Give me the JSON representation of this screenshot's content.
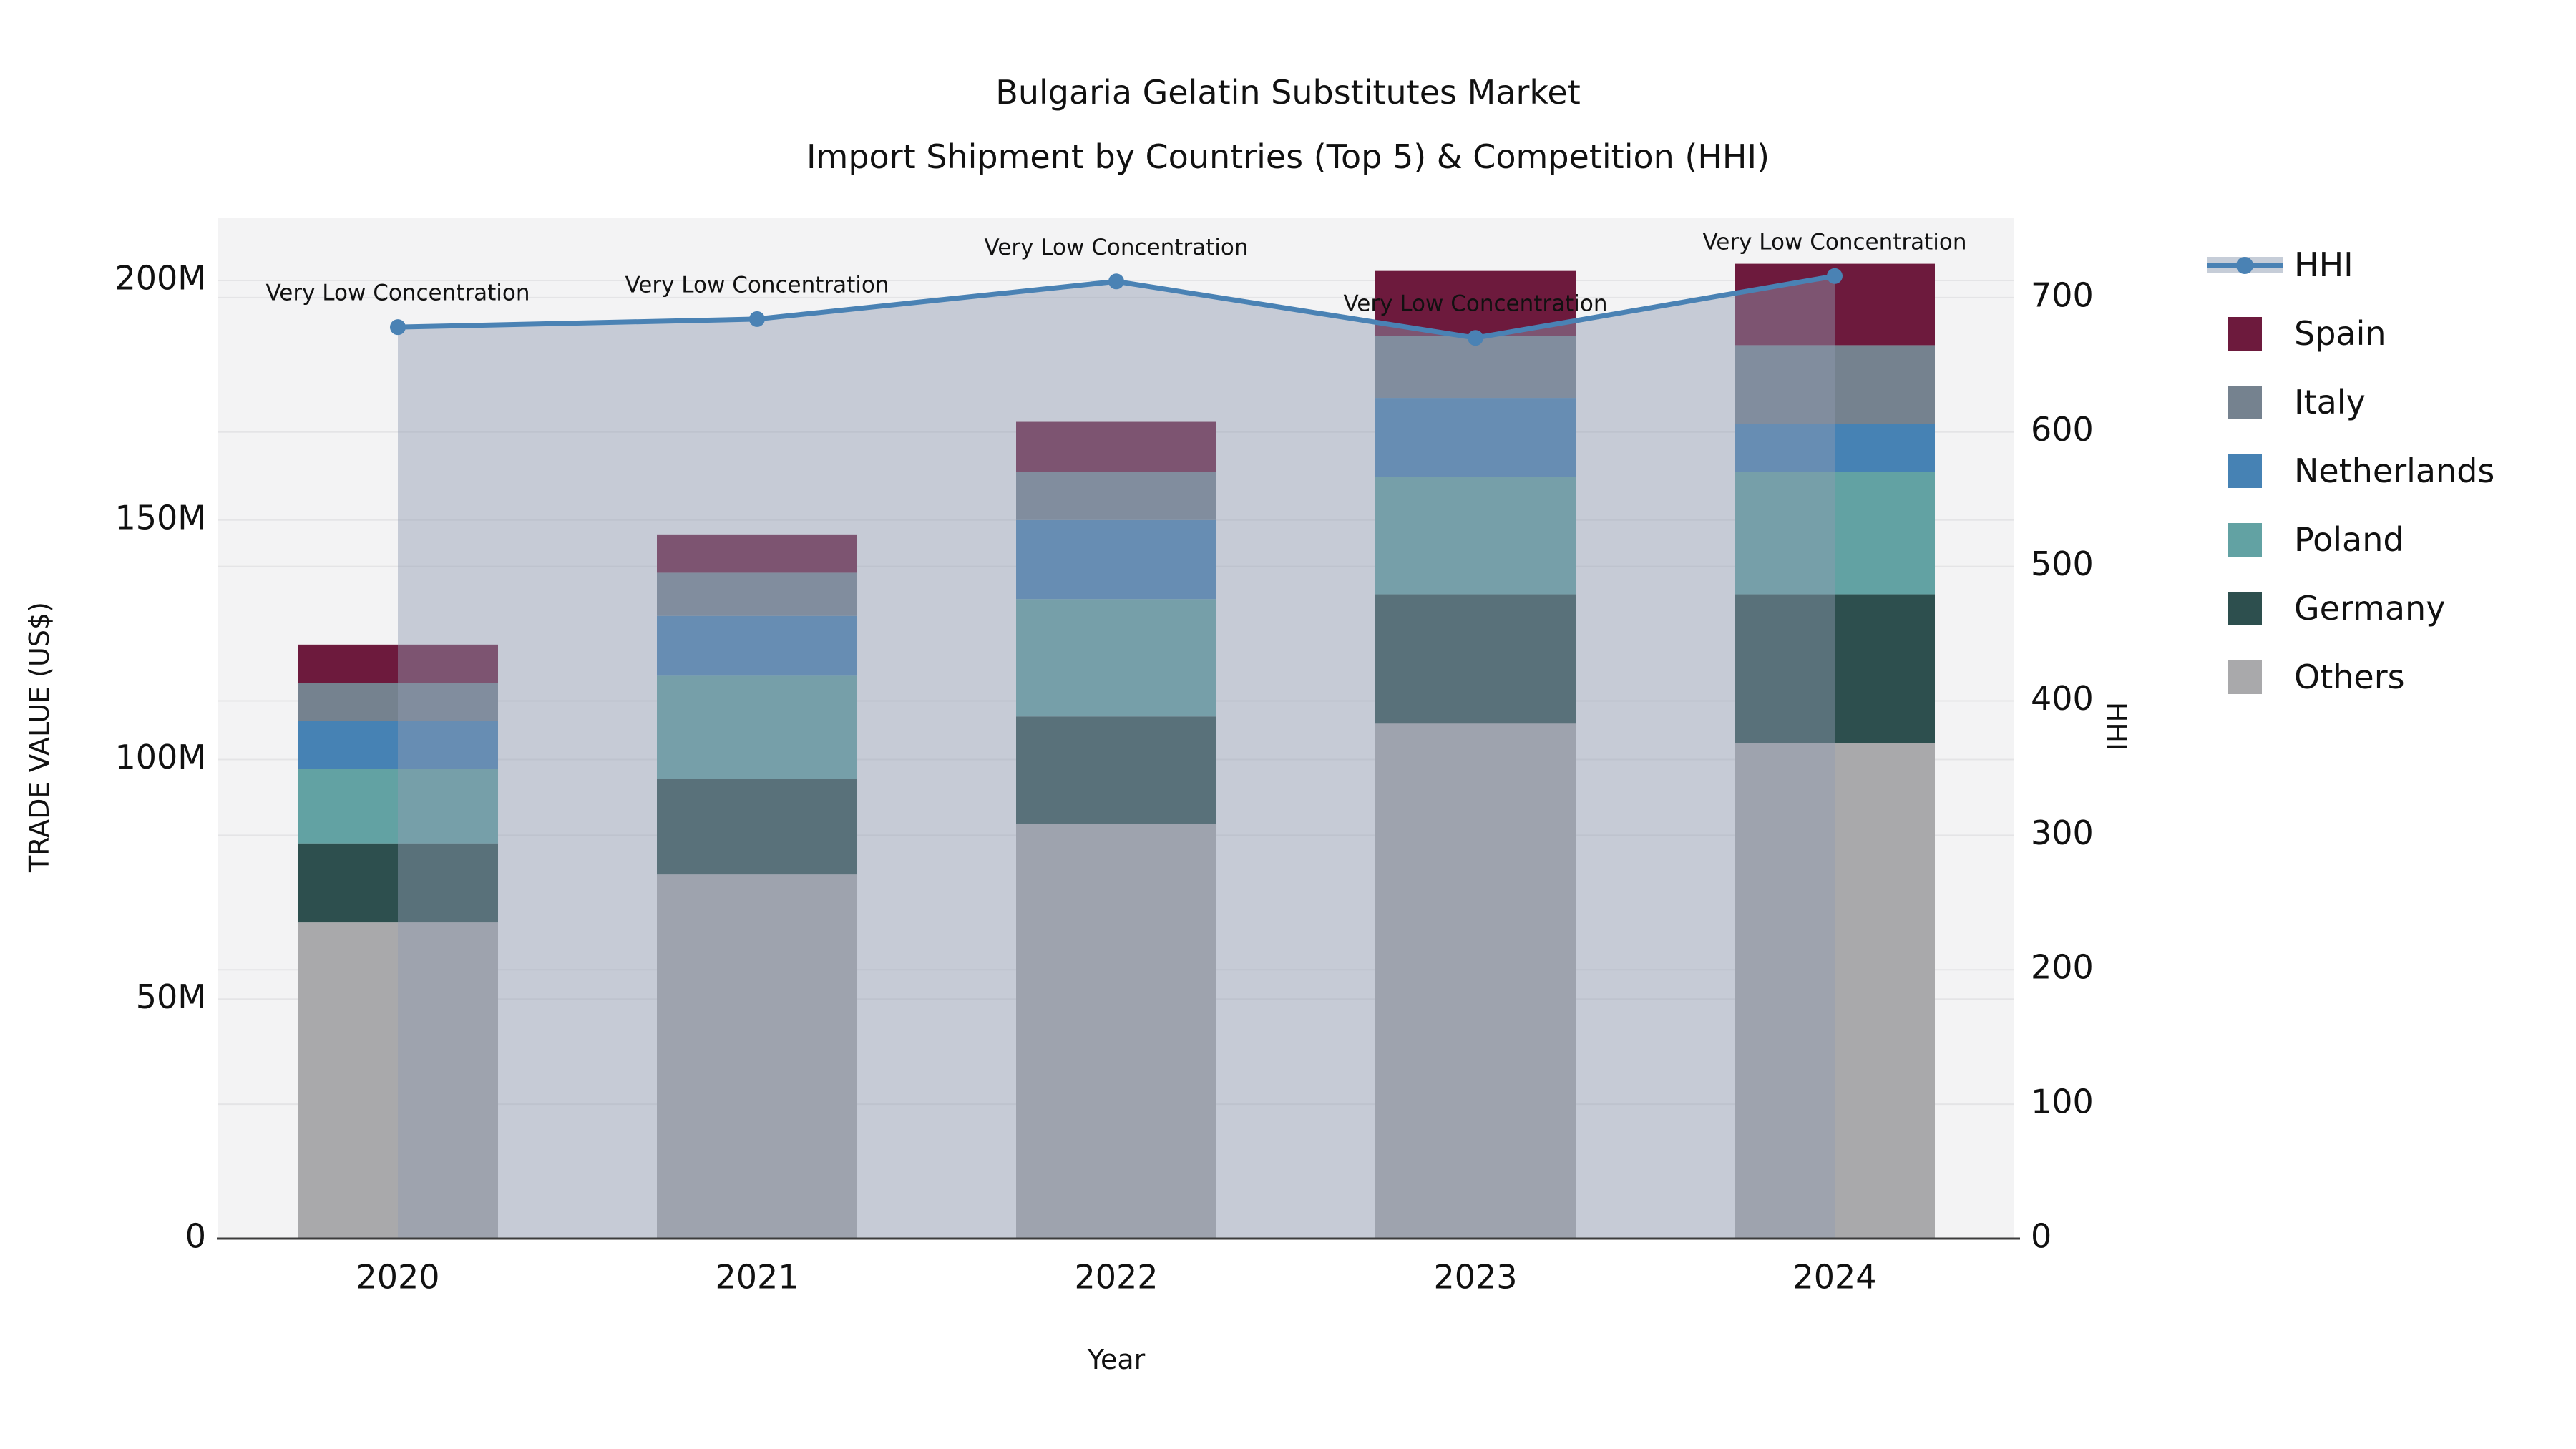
{
  "chart_data": {
    "type": "bar",
    "subtype": "stacked-bars-with-line-area",
    "title_line1": "Bulgaria Gelatin Substitutes Market",
    "title_line2": "Import Shipment by Countries (Top 5) & Competition (HHI)",
    "xlabel": "Year",
    "ylabel_left": "TRADE VALUE (US$)",
    "ylabel_right": "HHI",
    "categories": [
      "2020",
      "2021",
      "2022",
      "2023",
      "2024"
    ],
    "value_unit": "million US$",
    "series": [
      {
        "name": "Others",
        "color": "#a9a9ab",
        "values": [
          66,
          76,
          86.5,
          107.5,
          103.5
        ]
      },
      {
        "name": "Germany",
        "color": "#2d4f4e",
        "values": [
          16.5,
          20,
          22.5,
          27,
          31
        ]
      },
      {
        "name": "Poland",
        "color": "#62a2a3",
        "values": [
          15.5,
          21.5,
          24.5,
          24.5,
          25.5
        ]
      },
      {
        "name": "Netherlands",
        "color": "#4682b4",
        "values": [
          10,
          12.5,
          16.5,
          16.5,
          10
        ]
      },
      {
        "name": "Italy",
        "color": "#75828f",
        "values": [
          8,
          9,
          10,
          13,
          16.5
        ]
      },
      {
        "name": "Spain",
        "color": "#6d1a3d",
        "values": [
          8,
          8,
          10.5,
          13.5,
          17
        ]
      }
    ],
    "line": {
      "name": "HHI",
      "color": "#4a82b4",
      "area_fill": "rgba(144,156,177,0.45)",
      "legend_band_color": "#c6cdd8",
      "values": [
        678,
        684,
        712,
        670,
        716
      ],
      "annotation": "Very Low Concentration"
    },
    "legend_order": [
      "HHI",
      "Spain",
      "Italy",
      "Netherlands",
      "Poland",
      "Germany",
      "Others"
    ],
    "left_ticks": {
      "labels": [
        "0",
        "50M",
        "100M",
        "150M",
        "200M"
      ],
      "values": [
        0,
        50,
        100,
        150,
        200
      ]
    },
    "right_ticks": {
      "labels": [
        "0",
        "100",
        "200",
        "300",
        "400",
        "500",
        "600",
        "700"
      ],
      "values": [
        0,
        100,
        200,
        300,
        400,
        500,
        600,
        700
      ]
    },
    "ylim_left": [
      0,
      213
    ],
    "ylim_right": [
      0,
      759
    ],
    "grid": true,
    "legend_position": "right",
    "colors": {
      "figure_bg": "#ffffff",
      "plot_bg": "#f3f3f4",
      "grid": "#e4e4e6",
      "axis_line": "#3c3c3c",
      "text": "#111111"
    }
  }
}
